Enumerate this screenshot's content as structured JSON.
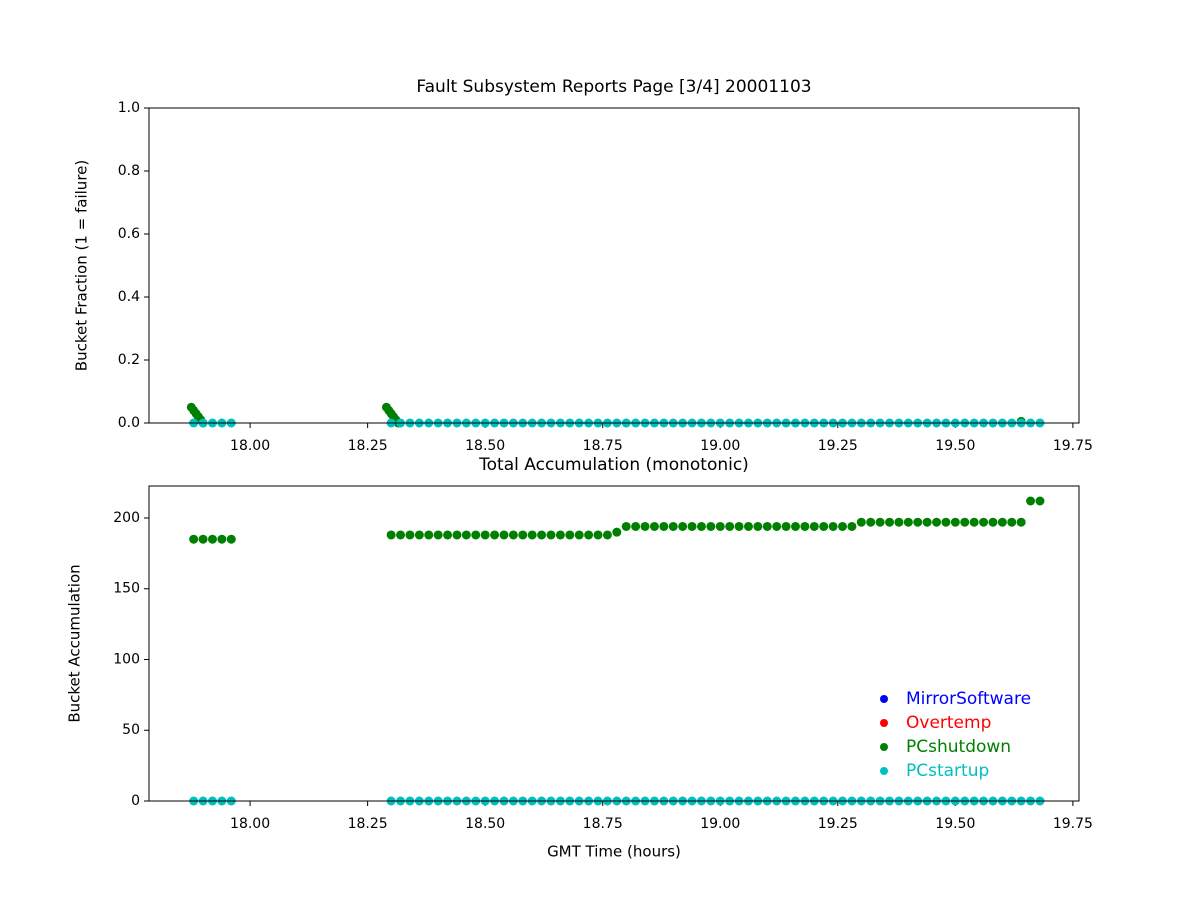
{
  "chart_data": [
    {
      "type": "scatter",
      "title": "Fault Subsystem Reports Page [3/4] 20001103",
      "y_label": "Bucket Fraction (1 = failure)",
      "xlim": [
        17.785,
        19.763
      ],
      "xticks": [
        {
          "value": 18,
          "label": "18.00"
        },
        18.25,
        {
          "value": 18.5,
          "label": "18.50"
        },
        18.75,
        {
          "value": 19,
          "label": "19.00"
        },
        19.25,
        {
          "value": 19.5,
          "label": "19.50"
        },
        19.75
      ],
      "ylim": [
        0,
        1
      ],
      "yticks": [
        {
          "value": 0,
          "label": "0.0"
        },
        0.2,
        0.4,
        0.6,
        0.8,
        {
          "value": 1,
          "label": "1.0"
        }
      ],
      "grid": false,
      "legend": false,
      "series": [
        {
          "name": "PCshutdown",
          "color": "#008000",
          "x": [
            17.875,
            17.88,
            17.885,
            17.89,
            17.895,
            17.9,
            18.29,
            18.295,
            18.3,
            18.305,
            18.31,
            18.315,
            19.64
          ],
          "values": [
            0.05,
            0.04,
            0.03,
            0.02,
            0.01,
            0,
            0.05,
            0.04,
            0.03,
            0.02,
            0.01,
            0,
            0.005
          ]
        },
        {
          "name": "PCstartup",
          "color": "#00bfbf",
          "x": [
            17.88,
            17.9,
            17.92,
            17.94,
            17.96,
            18.3,
            18.32,
            18.34,
            18.36,
            18.38,
            18.4,
            18.42,
            18.44,
            18.46,
            18.48,
            18.5,
            18.52,
            18.54,
            18.56,
            18.58,
            18.6,
            18.62,
            18.64,
            18.66,
            18.68,
            18.7,
            18.72,
            18.74,
            18.76,
            18.78,
            18.8,
            18.82,
            18.84,
            18.86,
            18.88,
            18.9,
            18.92,
            18.94,
            18.96,
            18.98,
            19,
            19.02,
            19.04,
            19.06,
            19.08,
            19.1,
            19.12,
            19.14,
            19.16,
            19.18,
            19.2,
            19.22,
            19.24,
            19.26,
            19.28,
            19.3,
            19.32,
            19.34,
            19.36,
            19.38,
            19.4,
            19.42,
            19.44,
            19.46,
            19.48,
            19.5,
            19.52,
            19.54,
            19.56,
            19.58,
            19.6,
            19.62,
            19.64,
            19.66,
            19.68
          ],
          "values": [
            0,
            0,
            0,
            0,
            0,
            0,
            0,
            0,
            0,
            0,
            0,
            0,
            0,
            0,
            0,
            0,
            0,
            0,
            0,
            0,
            0,
            0,
            0,
            0,
            0,
            0,
            0,
            0,
            0,
            0,
            0,
            0,
            0,
            0,
            0,
            0,
            0,
            0,
            0,
            0,
            0,
            0,
            0,
            0,
            0,
            0,
            0,
            0,
            0,
            0,
            0,
            0,
            0,
            0,
            0,
            0,
            0,
            0,
            0,
            0,
            0,
            0,
            0,
            0,
            0,
            0,
            0,
            0,
            0,
            0,
            0,
            0,
            0,
            0,
            0
          ]
        }
      ]
    },
    {
      "type": "scatter",
      "title": "Total Accumulation (monotonic)",
      "x_label": "GMT Time (hours)",
      "y_label": "Bucket Accumulation",
      "xlim": [
        17.785,
        19.763
      ],
      "xticks": [
        {
          "value": 18,
          "label": "18.00"
        },
        18.25,
        {
          "value": 18.5,
          "label": "18.50"
        },
        18.75,
        {
          "value": 19,
          "label": "19.00"
        },
        19.25,
        {
          "value": 19.5,
          "label": "19.50"
        },
        19.75
      ],
      "ylim": [
        0,
        222.6
      ],
      "yticks": [
        0,
        50,
        100,
        150,
        200
      ],
      "grid": false,
      "legend": "lower right",
      "series": [
        {
          "name": "MirrorSoftware",
          "color": "#0000ff",
          "x": [],
          "values": []
        },
        {
          "name": "Overtemp",
          "color": "#ff0000",
          "x": [],
          "values": []
        },
        {
          "name": "PCshutdown",
          "color": "#008000",
          "x": [
            17.88,
            17.9,
            17.92,
            17.94,
            17.96,
            18.3,
            18.32,
            18.34,
            18.36,
            18.38,
            18.4,
            18.42,
            18.44,
            18.46,
            18.48,
            18.5,
            18.52,
            18.54,
            18.56,
            18.58,
            18.6,
            18.62,
            18.64,
            18.66,
            18.68,
            18.7,
            18.72,
            18.74,
            18.76,
            18.78,
            18.8,
            18.82,
            18.84,
            18.86,
            18.88,
            18.9,
            18.92,
            18.94,
            18.96,
            18.98,
            19,
            19.02,
            19.04,
            19.06,
            19.08,
            19.1,
            19.12,
            19.14,
            19.16,
            19.18,
            19.2,
            19.22,
            19.24,
            19.26,
            19.28,
            19.3,
            19.32,
            19.34,
            19.36,
            19.38,
            19.4,
            19.42,
            19.44,
            19.46,
            19.48,
            19.5,
            19.52,
            19.54,
            19.56,
            19.58,
            19.6,
            19.62,
            19.64,
            19.66,
            19.68
          ],
          "values": [
            185,
            185,
            185,
            185,
            185,
            188,
            188,
            188,
            188,
            188,
            188,
            188,
            188,
            188,
            188,
            188,
            188,
            188,
            188,
            188,
            188,
            188,
            188,
            188,
            188,
            188,
            188,
            188,
            188,
            190,
            194,
            194,
            194,
            194,
            194,
            194,
            194,
            194,
            194,
            194,
            194,
            194,
            194,
            194,
            194,
            194,
            194,
            194,
            194,
            194,
            194,
            194,
            194,
            194,
            194,
            197,
            197,
            197,
            197,
            197,
            197,
            197,
            197,
            197,
            197,
            197,
            197,
            197,
            197,
            197,
            197,
            197,
            197,
            212,
            212
          ]
        },
        {
          "name": "PCstartup",
          "color": "#00bfbf",
          "x": [
            17.88,
            17.9,
            17.92,
            17.94,
            17.96,
            18.3,
            18.32,
            18.34,
            18.36,
            18.38,
            18.4,
            18.42,
            18.44,
            18.46,
            18.48,
            18.5,
            18.52,
            18.54,
            18.56,
            18.58,
            18.6,
            18.62,
            18.64,
            18.66,
            18.68,
            18.7,
            18.72,
            18.74,
            18.76,
            18.78,
            18.8,
            18.82,
            18.84,
            18.86,
            18.88,
            18.9,
            18.92,
            18.94,
            18.96,
            18.98,
            19,
            19.02,
            19.04,
            19.06,
            19.08,
            19.1,
            19.12,
            19.14,
            19.16,
            19.18,
            19.2,
            19.22,
            19.24,
            19.26,
            19.28,
            19.3,
            19.32,
            19.34,
            19.36,
            19.38,
            19.4,
            19.42,
            19.44,
            19.46,
            19.48,
            19.5,
            19.52,
            19.54,
            19.56,
            19.58,
            19.6,
            19.62,
            19.64,
            19.66,
            19.68
          ],
          "values": [
            0,
            0,
            0,
            0,
            0,
            0,
            0,
            0,
            0,
            0,
            0,
            0,
            0,
            0,
            0,
            0,
            0,
            0,
            0,
            0,
            0,
            0,
            0,
            0,
            0,
            0,
            0,
            0,
            0,
            0,
            0,
            0,
            0,
            0,
            0,
            0,
            0,
            0,
            0,
            0,
            0,
            0,
            0,
            0,
            0,
            0,
            0,
            0,
            0,
            0,
            0,
            0,
            0,
            0,
            0,
            0,
            0,
            0,
            0,
            0,
            0,
            0,
            0,
            0,
            0,
            0,
            0,
            0,
            0,
            0,
            0,
            0,
            0,
            0,
            0
          ]
        }
      ]
    }
  ]
}
